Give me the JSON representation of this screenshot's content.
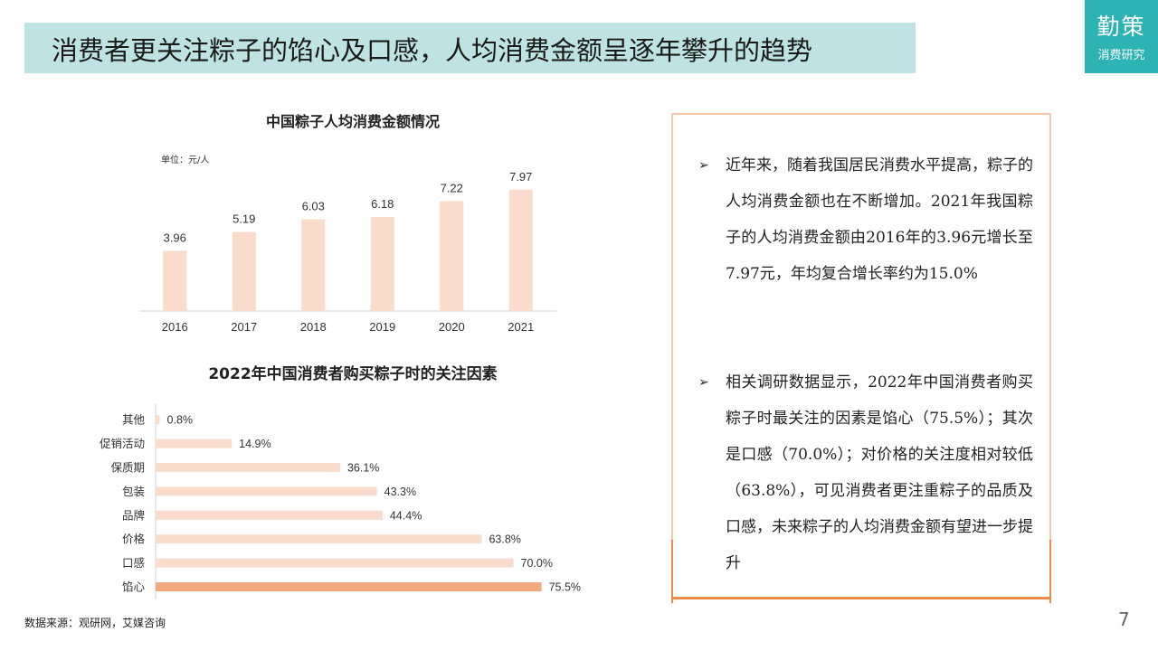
{
  "title": "消费者更关注粽子的馅心及口感，人均消费金额呈逐年攀升的趋势",
  "logo": {
    "main": "勤策",
    "sub": "消费研究"
  },
  "chart_data": [
    {
      "type": "bar",
      "title": "中国粽子人均消费金额情况",
      "unit": "单位：元/人",
      "categories": [
        "2016",
        "2017",
        "2018",
        "2019",
        "2020",
        "2021"
      ],
      "values": [
        3.96,
        5.19,
        6.03,
        6.18,
        7.22,
        7.97
      ],
      "value_labels": [
        "3.96",
        "5.19",
        "6.03",
        "6.18",
        "7.22",
        "7.97"
      ],
      "ylim": [
        0,
        9.5
      ],
      "color": "#f9dccb",
      "grid": false
    },
    {
      "type": "bar",
      "orientation": "horizontal",
      "title": "2022年中国消费者购买粽子时的关注因素",
      "categories": [
        "其他",
        "促销活动",
        "保质期",
        "包装",
        "品牌",
        "价格",
        "口感",
        "馅心"
      ],
      "values": [
        0.8,
        14.9,
        36.1,
        43.3,
        44.4,
        63.8,
        70.0,
        75.5
      ],
      "value_labels": [
        "0.8%",
        "14.9%",
        "36.1%",
        "43.3%",
        "44.4%",
        "63.8%",
        "70.0%",
        "75.5%"
      ],
      "xlim": [
        0,
        100
      ],
      "color": "#f9dccb",
      "highlight_color": "#f2a97f",
      "highlight_index": 7,
      "grid": false
    }
  ],
  "bullets": [
    {
      "marker": "➢",
      "text": "近年来，随着我国居民消费水平提高，粽子的人均消费金额也在不断增加。2021年我国粽子的人均消费金额由2016年的3.96元增长至7.97元，年均复合增长率约为15.0%"
    },
    {
      "marker": "➢",
      "text": "相关调研数据显示，2022年中国消费者购买粽子时最关注的因素是馅心（75.5%）；其次是口感（70.0%）；对价格的关注度相对较低（63.8%），可见消费者更注重粽子的品质及口感，未来粽子的人均消费金额有望进一步提升"
    }
  ],
  "footer": {
    "source": "数据来源：观研网，艾媒咨询",
    "page": "7"
  }
}
